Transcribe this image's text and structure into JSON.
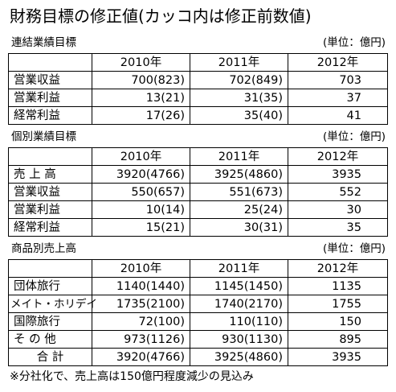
{
  "title": "財務目標の修正値(カッコ内は修正前数値)",
  "sections": [
    {
      "heading": "連結業績目標",
      "unit": "(単位：億円)",
      "years": [
        "2010年",
        "2011年",
        "2012年"
      ],
      "rows": [
        {
          "label": "営業収益",
          "v2010": "700(823)",
          "v2011": "702(849)",
          "v2012": "703"
        },
        {
          "label": "営業利益",
          "v2010": "13(21)",
          "v2011": "31(35)",
          "v2012": "37"
        },
        {
          "label": "経常利益",
          "v2010": "17(26)",
          "v2011": "35(40)",
          "v2012": "41"
        }
      ]
    },
    {
      "heading": "個別業績目標",
      "unit": "(単位：億円)",
      "years": [
        "2010年",
        "2011年",
        "2012年"
      ],
      "rows": [
        {
          "label": "売 上 高",
          "v2010": "3920(4766)",
          "v2011": "3925(4860)",
          "v2012": "3935"
        },
        {
          "label": "営業収益",
          "v2010": "550(657)",
          "v2011": "551(673)",
          "v2012": "552"
        },
        {
          "label": "営業利益",
          "v2010": "10(14)",
          "v2011": "25(24)",
          "v2012": "30"
        },
        {
          "label": "経常利益",
          "v2010": "15(21)",
          "v2011": "30(31)",
          "v2012": "35"
        }
      ]
    },
    {
      "heading": "商品別売上高",
      "unit": "(単位：億円)",
      "years": [
        "2010年",
        "2011年",
        "2012年"
      ],
      "rows": [
        {
          "label": "団体旅行",
          "v2010": "1140(1440)",
          "v2011": "1145(1450)",
          "v2012": "1135"
        },
        {
          "label": "メイト・ホリデイ",
          "v2010": "1735(2100)",
          "v2011": "1740(2170)",
          "v2012": "1755"
        },
        {
          "label": "国際旅行",
          "v2010": "72(100)",
          "v2011": "110(110)",
          "v2012": "150"
        },
        {
          "label": "そ の 他",
          "v2010": "973(1126)",
          "v2011": "930(1130)",
          "v2012": "895"
        },
        {
          "label": "合 計",
          "v2010": "3920(4766)",
          "v2011": "3925(4860)",
          "v2012": "3935"
        }
      ]
    }
  ],
  "footnote": "※分社化で、売上高は150億円程度減少の見込み"
}
